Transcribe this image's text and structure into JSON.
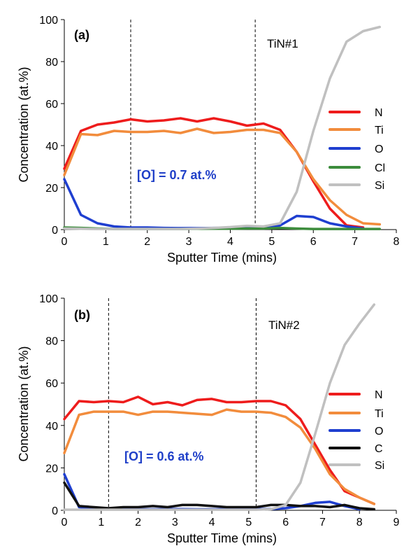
{
  "colors": {
    "N": "#ee1c1c",
    "Ti": "#f28c3c",
    "O": "#1f3fd0",
    "Cl": "#3c8c3c",
    "Si": "#c0c0c0",
    "C": "#111111",
    "annotation": "#1f3fc8"
  },
  "chart_data": [
    {
      "type": "line",
      "panel_label": "(a)",
      "sample_label": "TiN#1",
      "annotation": "[O] = 0.7 at.%",
      "xlabel": "Sputter Time (mins)",
      "ylabel": "Concentration (at.%)",
      "xlim": [
        0,
        8
      ],
      "ylim": [
        0,
        100
      ],
      "xticks": [
        "0",
        "1",
        "2",
        "3",
        "4",
        "5",
        "6",
        "7",
        "8"
      ],
      "yticks": [
        "0",
        "20",
        "40",
        "60",
        "80",
        "100"
      ],
      "dashed_lines_x": [
        1.6,
        4.6
      ],
      "legend_position": "right",
      "series": [
        {
          "name": "N",
          "color_key": "N",
          "x": [
            0,
            0.4,
            0.8,
            1.2,
            1.6,
            2.0,
            2.4,
            2.8,
            3.2,
            3.6,
            4.0,
            4.4,
            4.8,
            5.2,
            5.6,
            6.0,
            6.4,
            6.8,
            7.2
          ],
          "y": [
            29,
            47,
            50,
            51,
            52.5,
            51.5,
            52,
            53,
            51.5,
            53,
            51.5,
            49.5,
            50.5,
            47.5,
            37,
            23,
            10,
            2,
            1
          ]
        },
        {
          "name": "Ti",
          "color_key": "Ti",
          "x": [
            0,
            0.4,
            0.8,
            1.2,
            1.6,
            2.0,
            2.4,
            2.8,
            3.2,
            3.6,
            4.0,
            4.4,
            4.8,
            5.2,
            5.6,
            6.0,
            6.4,
            6.8,
            7.2,
            7.6
          ],
          "y": [
            26,
            45.5,
            45,
            47,
            46.5,
            46.5,
            47,
            46,
            48,
            46,
            46.5,
            47.5,
            47.5,
            46,
            37,
            24,
            14,
            7,
            3,
            2.5
          ]
        },
        {
          "name": "O",
          "color_key": "O",
          "x": [
            0,
            0.4,
            0.8,
            1.2,
            1.6,
            2.0,
            2.4,
            2.8,
            3.2,
            3.6,
            4.0,
            4.4,
            4.8,
            5.2,
            5.6,
            6.0,
            6.4,
            6.8,
            7.2
          ],
          "y": [
            24,
            7,
            3,
            1.5,
            1,
            1,
            0.8,
            0.7,
            0.7,
            0.8,
            0.8,
            0.7,
            0.7,
            2,
            6.5,
            6,
            3,
            1.5,
            0.5
          ]
        },
        {
          "name": "Cl",
          "color_key": "Cl",
          "x": [
            0,
            0.4,
            0.8,
            1.2,
            1.6,
            2.0,
            2.4,
            2.8,
            3.2,
            3.6,
            4.0,
            4.4,
            4.8,
            5.2,
            5.6,
            6.0,
            6.4,
            6.8,
            7.2,
            7.6
          ],
          "y": [
            1,
            0.8,
            0.5,
            0.3,
            0.3,
            0.3,
            0.3,
            0.3,
            0.4,
            0.4,
            0.4,
            0.5,
            0.5,
            0.8,
            0.5,
            0.3,
            0.3,
            0.3,
            0.3,
            0.3
          ]
        },
        {
          "name": "Si",
          "color_key": "Si",
          "x": [
            0,
            0.4,
            0.8,
            1.2,
            1.6,
            2.0,
            2.4,
            2.8,
            3.2,
            3.6,
            4.0,
            4.4,
            4.8,
            5.2,
            5.6,
            6.0,
            6.4,
            6.8,
            7.2,
            7.6
          ],
          "y": [
            0.5,
            0.4,
            0.3,
            0.3,
            0.3,
            0.3,
            0.3,
            0.3,
            0.5,
            0.8,
            1.2,
            1.8,
            1.5,
            3,
            18,
            47,
            72,
            89.5,
            94.5,
            96.5
          ]
        }
      ]
    },
    {
      "type": "line",
      "panel_label": "(b)",
      "sample_label": "TiN#2",
      "annotation": "[O] = 0.6 at.%",
      "xlabel": "Sputter Time (mins)",
      "ylabel": "Concentration (at.%)",
      "xlim": [
        0,
        9
      ],
      "ylim": [
        0,
        100
      ],
      "xticks": [
        "0",
        "1",
        "2",
        "3",
        "4",
        "5",
        "6",
        "7",
        "8",
        "9"
      ],
      "yticks": [
        "0",
        "20",
        "40",
        "60",
        "80",
        "100"
      ],
      "dashed_lines_x": [
        1.2,
        5.2
      ],
      "legend_position": "right",
      "series": [
        {
          "name": "N",
          "color_key": "N",
          "x": [
            0,
            0.4,
            0.8,
            1.2,
            1.6,
            2.0,
            2.4,
            2.8,
            3.2,
            3.6,
            4.0,
            4.4,
            4.8,
            5.2,
            5.6,
            6.0,
            6.4,
            6.8,
            7.2,
            7.6,
            8.0,
            8.4
          ],
          "y": [
            43,
            51.5,
            51,
            51.5,
            51,
            53.5,
            50,
            51,
            49.5,
            52,
            52.5,
            51,
            51,
            51.5,
            51.5,
            49.5,
            43,
            31,
            19,
            9,
            6,
            3
          ]
        },
        {
          "name": "Ti",
          "color_key": "Ti",
          "x": [
            0,
            0.4,
            0.8,
            1.2,
            1.6,
            2.0,
            2.4,
            2.8,
            3.2,
            3.6,
            4.0,
            4.4,
            4.8,
            5.2,
            5.6,
            6.0,
            6.4,
            6.8,
            7.2,
            7.6,
            8.0,
            8.4
          ],
          "y": [
            27,
            45,
            46.5,
            46.5,
            46.5,
            45,
            46.5,
            46.5,
            46,
            45.5,
            45,
            47.5,
            46.5,
            46.5,
            46,
            44,
            39,
            29,
            17,
            10,
            6,
            3
          ]
        },
        {
          "name": "O",
          "color_key": "O",
          "x": [
            0,
            0.4,
            0.8,
            1.2,
            1.6,
            2.0,
            2.4,
            2.8,
            3.2,
            3.6,
            4.0,
            4.4,
            4.8,
            5.2,
            5.6,
            6.0,
            6.4,
            6.8,
            7.2,
            7.6,
            8.0
          ],
          "y": [
            17,
            1.5,
            1,
            0.7,
            0.6,
            0.5,
            0.5,
            0.6,
            0.6,
            0.5,
            0.5,
            0.6,
            0.6,
            0.6,
            0.6,
            1,
            2,
            3.5,
            4,
            2,
            0.5
          ]
        },
        {
          "name": "C",
          "color_key": "C",
          "x": [
            0,
            0.4,
            0.8,
            1.2,
            1.6,
            2.0,
            2.4,
            2.8,
            3.2,
            3.6,
            4.0,
            4.4,
            4.8,
            5.2,
            5.6,
            6.0,
            6.4,
            6.8,
            7.2,
            7.6,
            8.0,
            8.4
          ],
          "y": [
            13,
            2,
            1.5,
            1,
            1.5,
            1.5,
            2,
            1.5,
            2.5,
            2.5,
            2,
            1.5,
            1.5,
            1.5,
            2.5,
            2.5,
            2,
            2,
            1.5,
            2.5,
            1,
            0.5
          ]
        },
        {
          "name": "Si",
          "color_key": "Si",
          "x": [
            0,
            0.4,
            0.8,
            1.2,
            1.6,
            2.0,
            2.4,
            2.8,
            3.2,
            3.6,
            4.0,
            4.4,
            4.8,
            5.2,
            5.6,
            6.0,
            6.4,
            6.8,
            7.2,
            7.6,
            8.0,
            8.4
          ],
          "y": [
            0.3,
            0.3,
            0.3,
            0.3,
            0.3,
            0.3,
            0.3,
            0.3,
            0.3,
            0.3,
            0.3,
            0.3,
            0.3,
            0.3,
            0.5,
            2.5,
            13,
            36,
            60,
            78,
            88,
            97
          ]
        }
      ]
    }
  ]
}
